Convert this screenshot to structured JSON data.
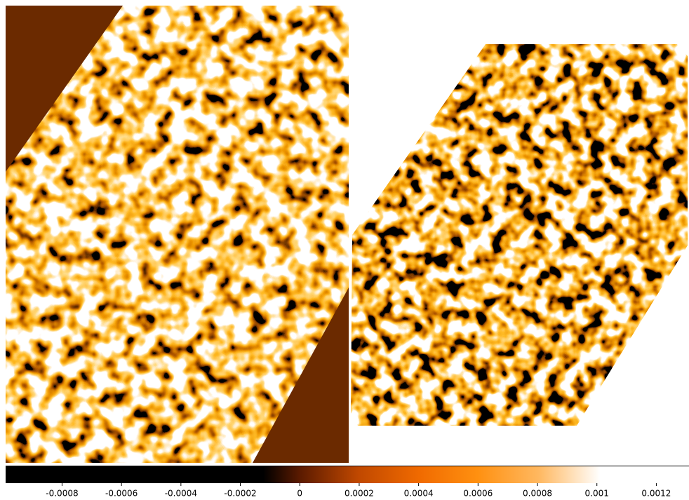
{
  "colorbar": {
    "range": [
      -0.00099,
      0.00131
    ],
    "ticks": [
      -0.0008,
      -0.0006,
      -0.0004,
      -0.0002,
      0,
      0.0002,
      0.0004,
      0.0006,
      0.0008,
      0.001,
      0.0012
    ]
  }
}
